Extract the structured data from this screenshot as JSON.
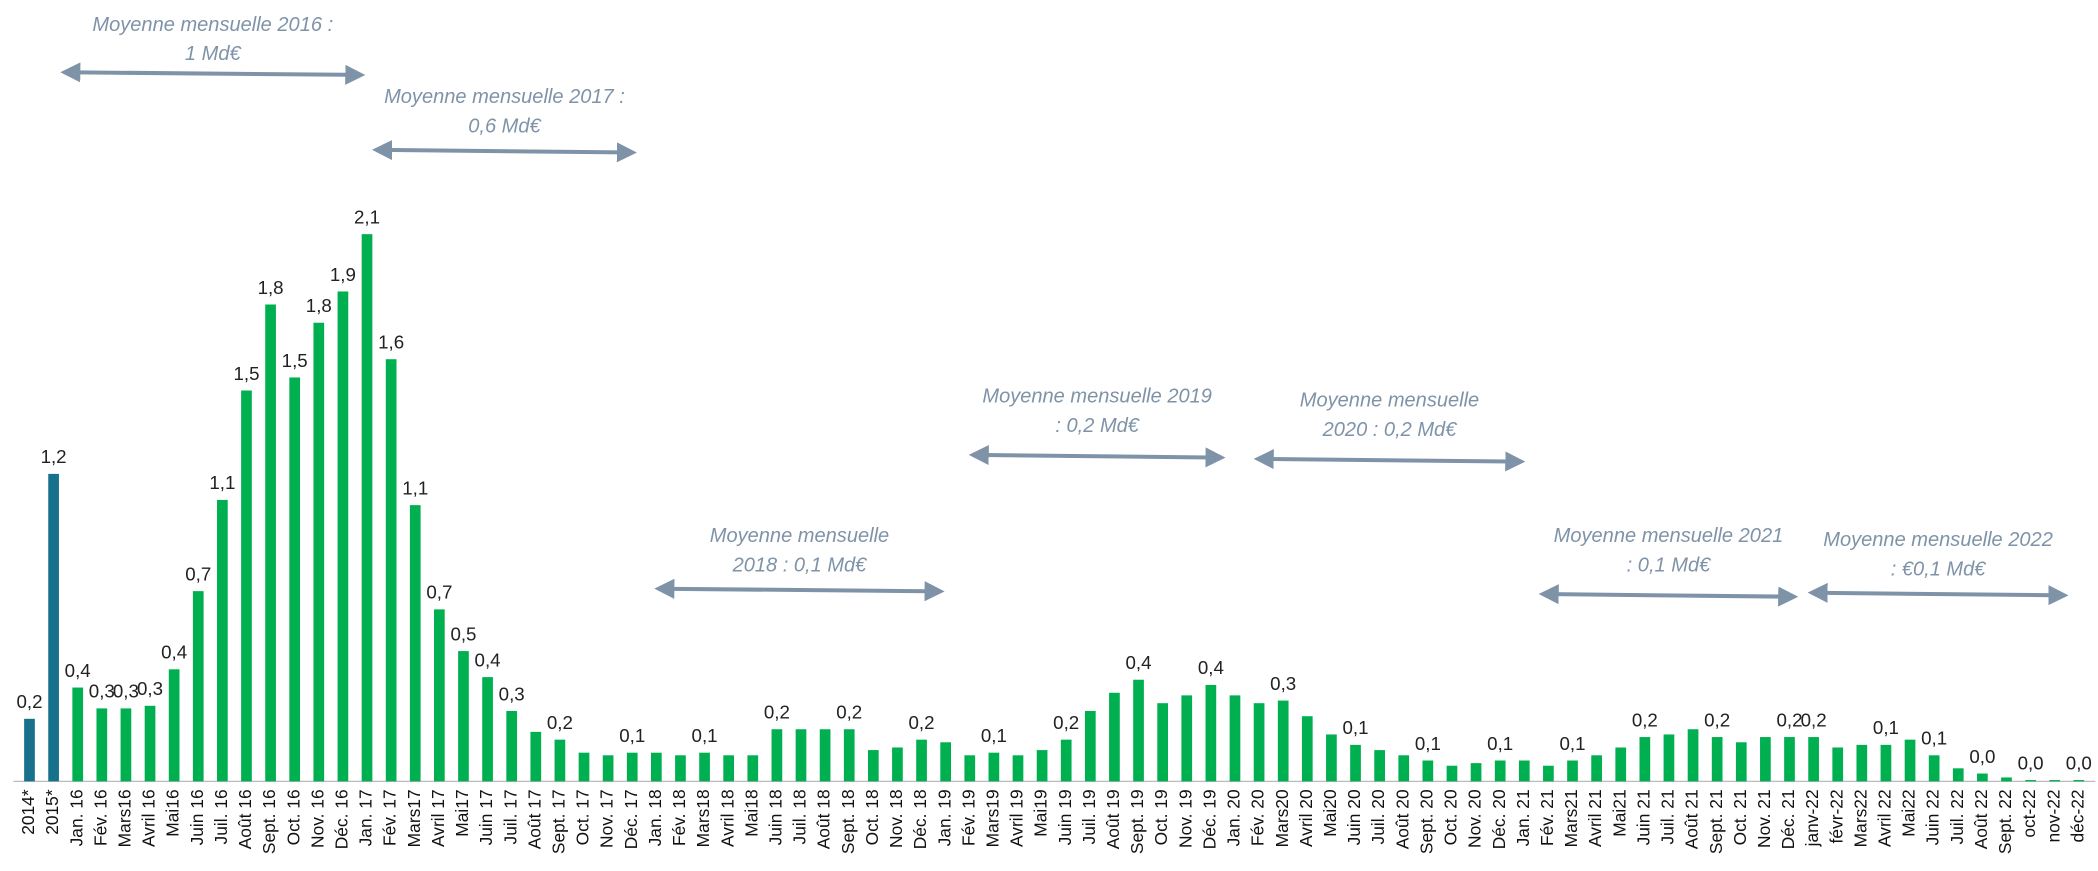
{
  "chart_data": {
    "type": "bar",
    "categories": [
      "2014*",
      "2015*",
      "Jan. 16",
      "Fév. 16",
      "Mars16",
      "Avril 16",
      "Mai16",
      "Juin 16",
      "Juil. 16",
      "Août 16",
      "Sept. 16",
      "Oct. 16",
      "Nov. 16",
      "Déc. 16",
      "Jan. 17",
      "Fév. 17",
      "Mars17",
      "Avril 17",
      "Mai17",
      "Juin 17",
      "Juil. 17",
      "Août 17",
      "Sept. 17",
      "Oct. 17",
      "Nov. 17",
      "Déc. 17",
      "Jan. 18",
      "Fév. 18",
      "Mars18",
      "Avril 18",
      "Mai18",
      "Juin 18",
      "Juil. 18",
      "Août 18",
      "Sept. 18",
      "Oct. 18",
      "Nov. 18",
      "Déc. 18",
      "Jan. 19",
      "Fév. 19",
      "Mars19",
      "Avril 19",
      "Mai19",
      "Juin 19",
      "Juil. 19",
      "Août 19",
      "Sept. 19",
      "Oct. 19",
      "Nov. 19",
      "Déc. 19",
      "Jan. 20",
      "Fév. 20",
      "Mars20",
      "Avril 20",
      "Mai20",
      "Juin 20",
      "Juil. 20",
      "Août 20",
      "Sept. 20",
      "Oct. 20",
      "Nov. 20",
      "Déc. 20",
      "Jan. 21",
      "Fév. 21",
      "Mars21",
      "Avril 21",
      "Mai21",
      "Juin 21",
      "Juil. 21",
      "Août 21",
      "Sept. 21",
      "Oct. 21",
      "Nov. 21",
      "Déc. 21",
      "janv-22",
      "févr-22",
      "Mars22",
      "Avril 22",
      "Mai22",
      "Juin 22",
      "Juil. 22",
      "Août 22",
      "Sept. 22",
      "oct-22",
      "nov-22",
      "déc-22"
    ],
    "values": [
      0.24,
      1.18,
      0.36,
      0.28,
      0.28,
      0.29,
      0.43,
      0.73,
      1.08,
      1.5,
      1.83,
      1.55,
      1.76,
      1.88,
      2.1,
      1.62,
      1.06,
      0.66,
      0.5,
      0.4,
      0.27,
      0.19,
      0.16,
      0.11,
      0.1,
      0.11,
      0.11,
      0.1,
      0.11,
      0.1,
      0.1,
      0.2,
      0.2,
      0.2,
      0.2,
      0.12,
      0.13,
      0.16,
      0.15,
      0.1,
      0.11,
      0.1,
      0.12,
      0.16,
      0.27,
      0.34,
      0.39,
      0.3,
      0.33,
      0.37,
      0.33,
      0.3,
      0.31,
      0.25,
      0.18,
      0.14,
      0.12,
      0.1,
      0.08,
      0.06,
      0.07,
      0.08,
      0.08,
      0.06,
      0.08,
      0.1,
      0.13,
      0.17,
      0.18,
      0.2,
      0.17,
      0.15,
      0.17,
      0.17,
      0.17,
      0.13,
      0.14,
      0.14,
      0.16,
      0.1,
      0.05,
      0.03,
      0.015,
      0.005,
      0.005,
      0.005
    ],
    "value_labels": [
      "0,2",
      "1,2",
      "0,4",
      "0,3",
      "0,3",
      "0,3",
      "0,4",
      "0,7",
      "1,1",
      "1,5",
      "1,8",
      "1,5",
      "1,8",
      "1,9",
      "2,1",
      "1,6",
      "1,1",
      "0,7",
      "0,5",
      "0,4",
      "0,3",
      null,
      "0,2",
      null,
      null,
      "0,1",
      null,
      null,
      "0,1",
      null,
      null,
      "0,2",
      null,
      null,
      "0,2",
      null,
      null,
      "0,2",
      null,
      null,
      "0,1",
      null,
      null,
      "0,2",
      null,
      null,
      "0,4",
      null,
      null,
      "0,4",
      null,
      null,
      "0,3",
      null,
      null,
      "0,1",
      null,
      null,
      "0,1",
      null,
      null,
      "0,1",
      null,
      null,
      "0,1",
      null,
      null,
      "0,2",
      null,
      null,
      "0,2",
      null,
      null,
      "0,2",
      "0,2",
      null,
      null,
      "0,1",
      null,
      "0,1",
      null,
      "0,0",
      null,
      "0,0",
      null,
      "0,0"
    ],
    "colors": [
      "#17718c",
      "#17718c",
      "#00b050"
    ],
    "annotations": [
      [
        "Moyenne mensuelle 2016 :",
        "1 Md€"
      ],
      [
        "Moyenne mensuelle 2017 :",
        "0,6 Md€"
      ],
      [
        "Moyenne mensuelle",
        "2018 : 0,1 Md€"
      ],
      [
        "Moyenne mensuelle 2019",
        ": 0,2 Md€"
      ],
      [
        "Moyenne mensuelle",
        "2020 : 0,2 Md€"
      ],
      [
        "Moyenne mensuelle 2021",
        ": 0,1 Md€"
      ],
      [
        "Moyenne mensuelle 2022",
        ": €0,1 Md€"
      ]
    ]
  }
}
